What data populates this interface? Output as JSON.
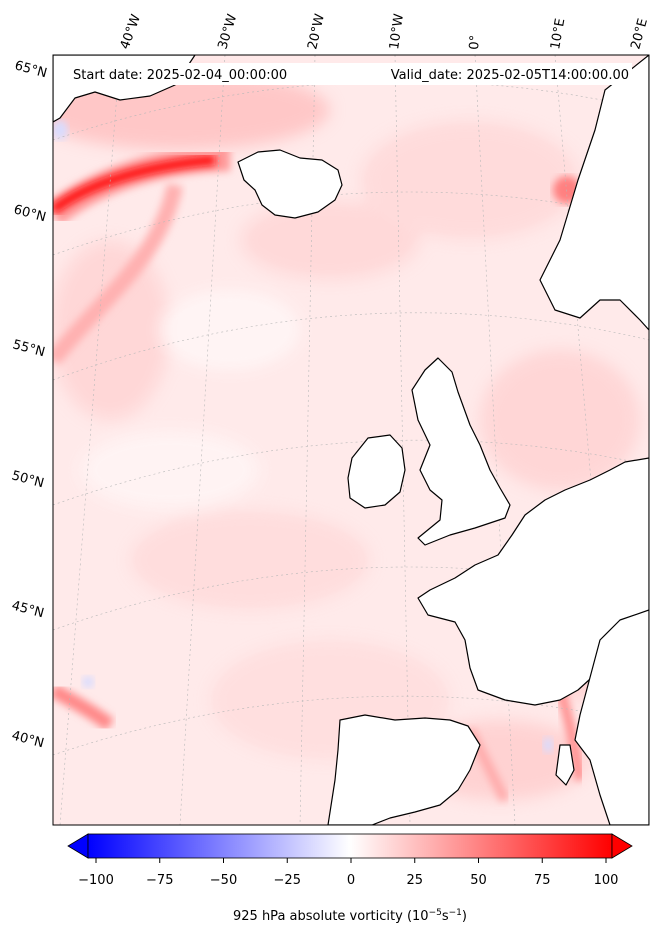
{
  "map": {
    "start_date_label": "Start date: 2025-02-04_00:00:00",
    "valid_date_label": "Valid_date: 2025-02-05T14:00:00.00",
    "lon_labels": [
      "40°W",
      "30°W",
      "20°W",
      "10°W",
      "0°",
      "10°E",
      "20°E"
    ],
    "lat_labels": [
      "65°N",
      "60°N",
      "55°N",
      "50°N",
      "45°N",
      "40°N"
    ]
  },
  "colorbar": {
    "ticks": [
      "−100",
      "−75",
      "−50",
      "−25",
      "0",
      "25",
      "50",
      "75",
      "100"
    ],
    "min": -100,
    "max": 100,
    "label_main": "925 hPa absolute vorticity (10",
    "label_exp1": "−5",
    "label_mid": "s",
    "label_exp2": "−1",
    "label_end": ")",
    "color_low": "#0000ff",
    "color_mid": "#ffffff",
    "color_high": "#ff0000"
  }
}
